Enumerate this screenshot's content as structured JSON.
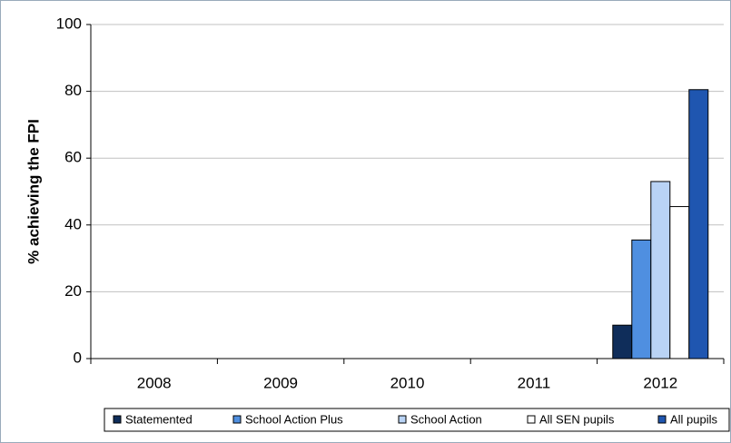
{
  "chart_data": {
    "type": "bar",
    "y_label": "% achieving the FPI",
    "categories": [
      "2008",
      "2009",
      "2010",
      "2011",
      "2012"
    ],
    "series": [
      {
        "name": "Statemented",
        "color": "#0f2d5a",
        "values": [
          null,
          null,
          null,
          null,
          10
        ]
      },
      {
        "name": "School Action Plus",
        "color": "#4f8fe0",
        "values": [
          null,
          null,
          null,
          null,
          35.5
        ]
      },
      {
        "name": "School Action",
        "color": "#b9d3f5",
        "values": [
          null,
          null,
          null,
          null,
          53
        ]
      },
      {
        "name": "All SEN pupils",
        "color": "#ffffff",
        "values": [
          null,
          null,
          null,
          null,
          45.5
        ]
      },
      {
        "name": "All pupils",
        "color": "#1f56b0",
        "values": [
          null,
          null,
          null,
          null,
          80.5
        ]
      }
    ],
    "ylim": [
      0,
      100
    ],
    "yticks": [
      0,
      20,
      40,
      60,
      80,
      100
    ],
    "grid": true,
    "legend": "bottom"
  }
}
